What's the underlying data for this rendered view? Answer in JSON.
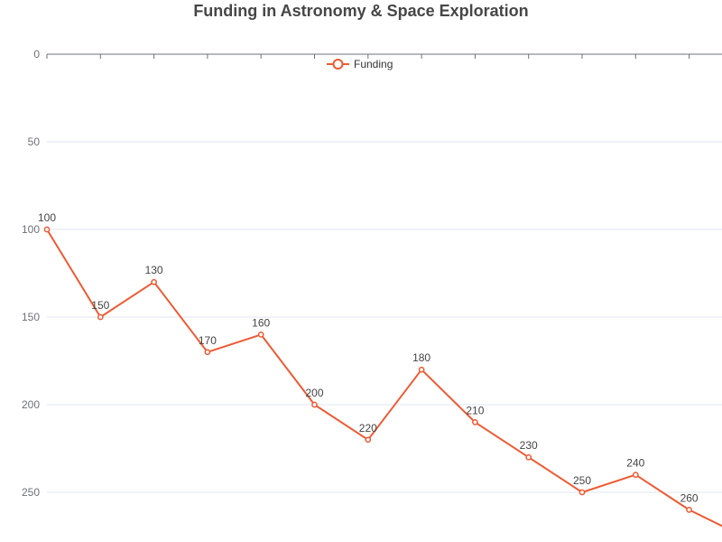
{
  "chart_data": {
    "type": "line",
    "title": "Funding in Astronomy & Space Exploration",
    "xlabel": "",
    "ylabel": "",
    "y_inverted": true,
    "ylim": [
      0,
      275
    ],
    "y_ticks": [
      0,
      50,
      100,
      150,
      200,
      250
    ],
    "grid": "horizontal",
    "legend_position": "top-center",
    "series": [
      {
        "name": "Funding",
        "color": "#ee5a33",
        "values": [
          100,
          150,
          130,
          170,
          160,
          200,
          220,
          180,
          210,
          230,
          250,
          240,
          260,
          275
        ]
      }
    ],
    "data_labels": [
      "100",
      "150",
      "130",
      "170",
      "160",
      "200",
      "220",
      "180",
      "210",
      "230",
      "250",
      "240",
      "260",
      ""
    ]
  }
}
